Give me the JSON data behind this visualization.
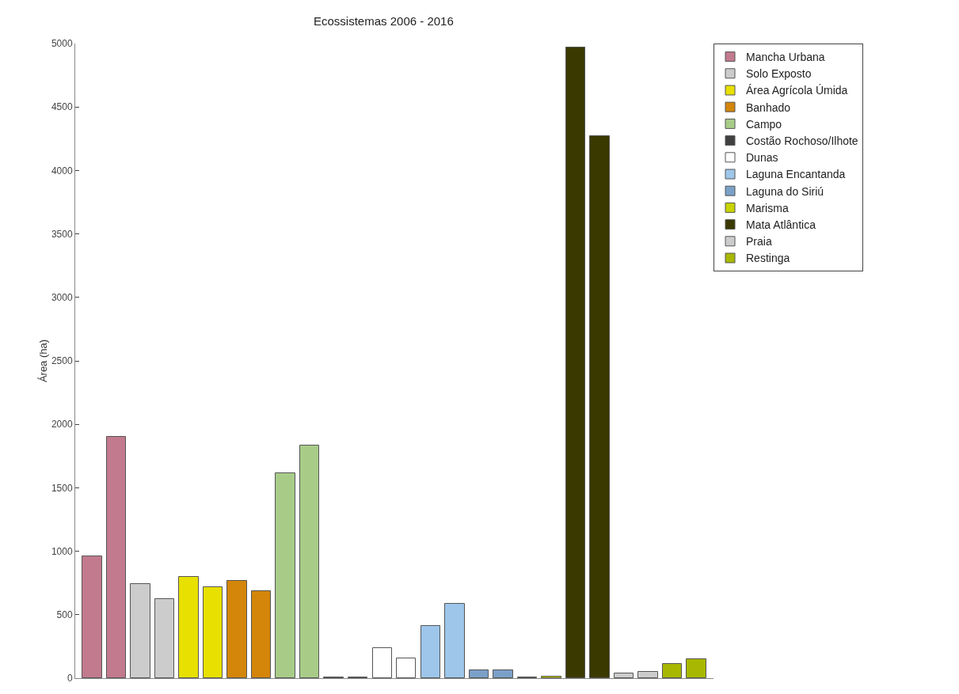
{
  "chart_data": {
    "type": "bar",
    "title": "Ecossistemas 2006 - 2016",
    "ylabel": "Área (ha)",
    "categories": [
      null,
      null,
      null,
      null,
      null,
      null,
      null,
      null,
      null,
      null,
      null,
      null,
      null,
      null,
      null,
      null,
      null,
      null,
      null,
      null,
      null,
      null,
      null,
      null,
      null,
      null
    ],
    "series": [
      {
        "name": "Mancha Urbana",
        "color": "#c27a8e",
        "values": [
          960,
          1900,
          null,
          null,
          null,
          null,
          null,
          null,
          null,
          null,
          null,
          null,
          null,
          null,
          null,
          null,
          null,
          null,
          null,
          null,
          null,
          null,
          null,
          null,
          null,
          null
        ]
      },
      {
        "name": "Solo Exposto",
        "color": "#cccccc",
        "values": [
          null,
          null,
          745,
          625,
          null,
          null,
          null,
          null,
          null,
          null,
          null,
          null,
          null,
          null,
          null,
          null,
          null,
          null,
          null,
          null,
          null,
          null,
          null,
          null,
          null,
          null
        ]
      },
      {
        "name": "Área Agrícola Úmida",
        "color": "#e8e000",
        "values": [
          null,
          null,
          null,
          null,
          800,
          720,
          null,
          null,
          null,
          null,
          null,
          null,
          null,
          null,
          null,
          null,
          null,
          null,
          null,
          null,
          null,
          null,
          null,
          null,
          null,
          null
        ]
      },
      {
        "name": "Banhado",
        "color": "#d4860a",
        "values": [
          null,
          null,
          null,
          null,
          null,
          null,
          765,
          685,
          null,
          null,
          null,
          null,
          null,
          null,
          null,
          null,
          null,
          null,
          null,
          null,
          null,
          null,
          null,
          null,
          null,
          null
        ]
      },
      {
        "name": "Campo",
        "color": "#a8cc88",
        "values": [
          null,
          null,
          null,
          null,
          null,
          null,
          null,
          null,
          1615,
          1835,
          null,
          null,
          null,
          null,
          null,
          null,
          null,
          null,
          null,
          null,
          null,
          null,
          null,
          null,
          null,
          null
        ]
      },
      {
        "name": "Costão Rochoso/Ilhote",
        "color": "#404040",
        "values": [
          null,
          null,
          null,
          null,
          null,
          null,
          null,
          null,
          null,
          null,
          5,
          5,
          null,
          null,
          null,
          null,
          null,
          null,
          null,
          null,
          null,
          null,
          null,
          null,
          null,
          null
        ]
      },
      {
        "name": "Dunas",
        "color": "#ffffff",
        "values": [
          null,
          null,
          null,
          null,
          null,
          null,
          null,
          null,
          null,
          null,
          null,
          null,
          240,
          155,
          null,
          null,
          null,
          null,
          null,
          null,
          null,
          null,
          null,
          null,
          null,
          null
        ]
      },
      {
        "name": "Laguna Encantanda",
        "color": "#9ec6ea",
        "values": [
          null,
          null,
          null,
          null,
          null,
          null,
          null,
          null,
          null,
          null,
          null,
          null,
          null,
          null,
          413,
          585,
          null,
          null,
          null,
          null,
          null,
          null,
          null,
          null,
          null,
          null
        ]
      },
      {
        "name": "Laguna do Siriú",
        "color": "#7ba0c8",
        "values": [
          null,
          null,
          null,
          null,
          null,
          null,
          null,
          null,
          null,
          null,
          null,
          null,
          null,
          null,
          null,
          null,
          60,
          60,
          null,
          null,
          null,
          null,
          null,
          null,
          null,
          null
        ]
      },
      {
        "name": "Marisma",
        "color": "#c8d400",
        "values": [
          null,
          null,
          null,
          null,
          null,
          null,
          null,
          null,
          null,
          null,
          null,
          null,
          null,
          null,
          null,
          null,
          null,
          null,
          5,
          15,
          null,
          null,
          null,
          null,
          null,
          null
        ]
      },
      {
        "name": "Mata Atlântica",
        "color": "#3a3a00",
        "values": [
          null,
          null,
          null,
          null,
          null,
          null,
          null,
          null,
          null,
          null,
          null,
          null,
          null,
          null,
          null,
          null,
          null,
          null,
          null,
          null,
          4970,
          4270,
          null,
          null,
          null,
          null
        ]
      },
      {
        "name": "Praia",
        "color": "#cccccc",
        "values": [
          null,
          null,
          null,
          null,
          null,
          null,
          null,
          null,
          null,
          null,
          null,
          null,
          null,
          null,
          null,
          null,
          null,
          null,
          null,
          null,
          null,
          null,
          40,
          50,
          null,
          null
        ]
      },
      {
        "name": "Restinga",
        "color": "#a8b800",
        "values": [
          null,
          null,
          null,
          null,
          null,
          null,
          null,
          null,
          null,
          null,
          null,
          null,
          null,
          null,
          null,
          null,
          null,
          null,
          null,
          null,
          null,
          null,
          null,
          null,
          115,
          150
        ]
      }
    ],
    "ylim": [
      0,
      5000
    ],
    "yticks": [
      0,
      500,
      1000,
      1500,
      2000,
      2500,
      3000,
      3500,
      4000,
      4500,
      5000
    ],
    "grid": false,
    "legend": "top right",
    "tick_labels": "y"
  }
}
